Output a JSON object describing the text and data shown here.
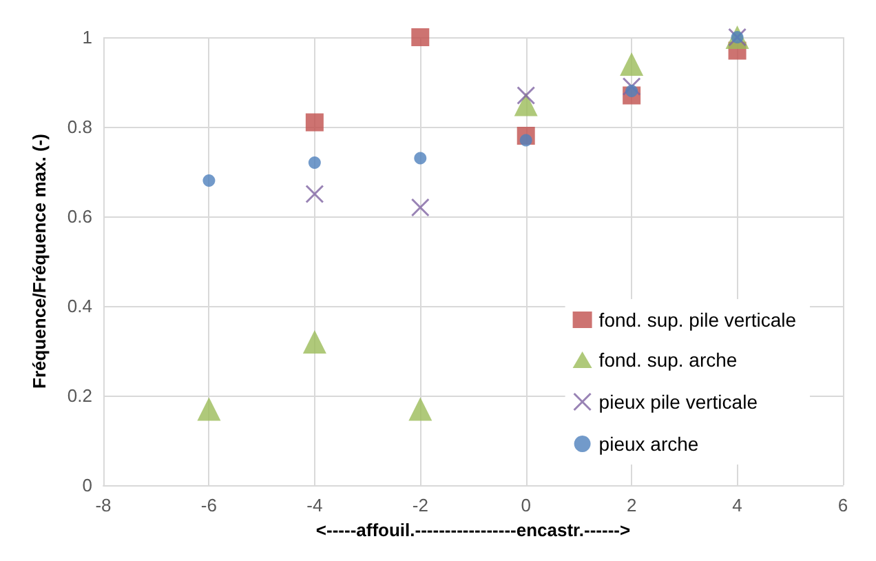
{
  "chart_data": {
    "type": "scatter",
    "xlabel": "<-----affouil.-----------------encastr.------>",
    "ylabel": "Fréquence/Fréquence max. (-)",
    "x": [
      -6,
      -4,
      -2,
      0,
      2,
      4
    ],
    "series": [
      {
        "name": "fond. sup. pile verticale",
        "color": "#c0504d",
        "marker": "square",
        "values": [
          null,
          0.81,
          1.0,
          0.78,
          0.87,
          0.97
        ]
      },
      {
        "name": "fond. sup. arche",
        "color": "#9bbb59",
        "marker": "triangle",
        "values": [
          0.17,
          0.32,
          0.17,
          0.85,
          0.94,
          1.0
        ]
      },
      {
        "name": "pieux pile verticale",
        "color": "#8064a2",
        "marker": "cross",
        "values": [
          null,
          0.65,
          0.62,
          0.87,
          0.89,
          1.0
        ]
      },
      {
        "name": "pieux arche",
        "color": "#4f81bd",
        "marker": "circle",
        "values": [
          0.68,
          0.72,
          0.73,
          0.77,
          0.88,
          1.0
        ]
      }
    ],
    "xlim": [
      -8,
      6
    ],
    "xticks": [
      -8,
      -6,
      -4,
      -2,
      0,
      2,
      4,
      6
    ],
    "ylim": [
      0,
      1
    ],
    "yticks": [
      0,
      0.2,
      0.4,
      0.6,
      0.8,
      1
    ],
    "grid": true,
    "legend": "bottom right"
  }
}
